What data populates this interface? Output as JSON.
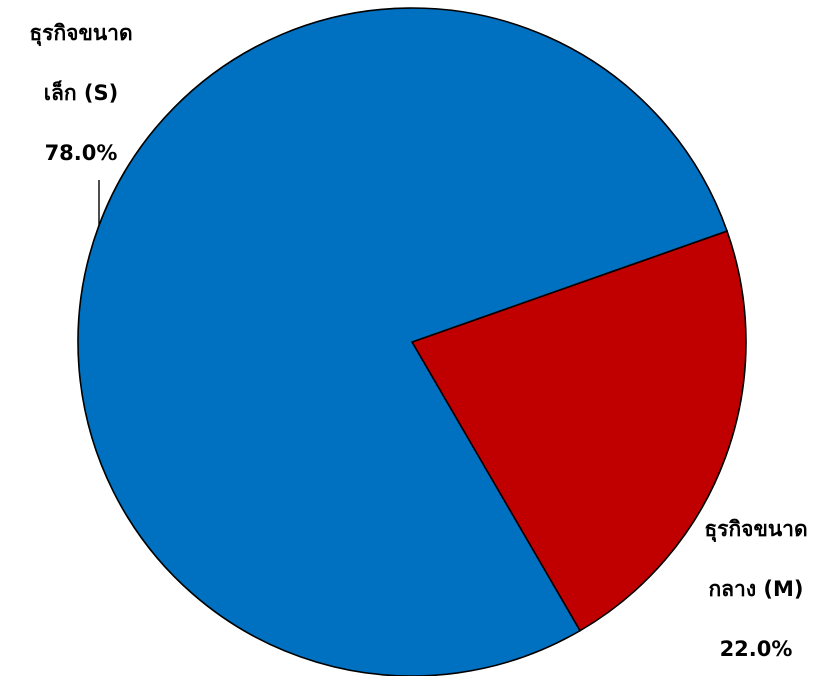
{
  "chart_data": {
    "type": "pie",
    "slices": [
      {
        "label_line1": "ธุรกิจขนาด",
        "label_line2": "เล็ก (S)",
        "label": "ธุรกิจขนาดเล็ก (S)",
        "value": 78.0,
        "percent_label": "78.0%",
        "color": "#0070C0"
      },
      {
        "label_line1": "ธุรกิจขนาด",
        "label_line2": "กลาง (M)",
        "label": "ธุรกิจขนาดกลาง (M)",
        "value": 22.0,
        "percent_label": "22.0%",
        "color": "#C00000"
      }
    ],
    "legend": "none"
  }
}
